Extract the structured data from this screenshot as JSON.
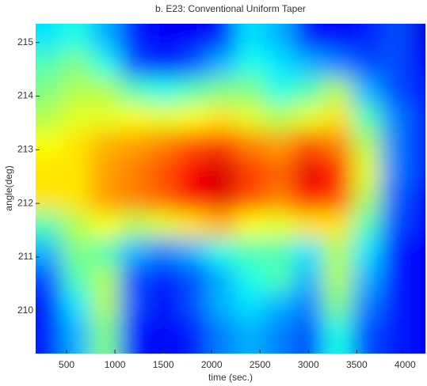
{
  "chart_data": {
    "type": "heatmap",
    "title": "b. E23: Conventional Uniform Taper",
    "x_label": "time (sec.)",
    "y_label": "angle(deg)",
    "x": [
      300,
      600,
      900,
      1200,
      1500,
      1800,
      2100,
      2400,
      2700,
      3000,
      3300,
      3600,
      3900,
      4200
    ],
    "y": [
      215.1,
      214.6,
      214.1,
      213.6,
      213.1,
      212.6,
      212.1,
      211.6,
      211.1,
      210.6,
      210.1,
      209.6
    ],
    "z": [
      [
        0.35,
        0.4,
        0.3,
        0.15,
        0.12,
        0.12,
        0.15,
        0.35,
        0.3,
        0.15,
        0.12,
        0.15,
        0.2,
        0.1
      ],
      [
        0.45,
        0.5,
        0.4,
        0.2,
        0.15,
        0.2,
        0.3,
        0.4,
        0.35,
        0.3,
        0.25,
        0.2,
        0.2,
        0.12
      ],
      [
        0.5,
        0.55,
        0.55,
        0.45,
        0.4,
        0.45,
        0.5,
        0.5,
        0.4,
        0.45,
        0.55,
        0.3,
        0.2,
        0.15
      ],
      [
        0.55,
        0.6,
        0.6,
        0.62,
        0.6,
        0.62,
        0.65,
        0.6,
        0.55,
        0.6,
        0.65,
        0.45,
        0.25,
        0.15
      ],
      [
        0.62,
        0.65,
        0.7,
        0.72,
        0.75,
        0.8,
        0.82,
        0.75,
        0.72,
        0.8,
        0.75,
        0.55,
        0.25,
        0.15
      ],
      [
        0.65,
        0.65,
        0.72,
        0.75,
        0.8,
        0.88,
        0.92,
        0.82,
        0.78,
        0.9,
        0.85,
        0.6,
        0.25,
        0.15
      ],
      [
        0.65,
        0.65,
        0.72,
        0.75,
        0.78,
        0.88,
        0.9,
        0.8,
        0.75,
        0.88,
        0.8,
        0.55,
        0.22,
        0.12
      ],
      [
        0.45,
        0.55,
        0.62,
        0.55,
        0.6,
        0.65,
        0.7,
        0.62,
        0.6,
        0.65,
        0.65,
        0.45,
        0.2,
        0.12
      ],
      [
        0.3,
        0.5,
        0.45,
        0.3,
        0.25,
        0.3,
        0.4,
        0.45,
        0.45,
        0.35,
        0.55,
        0.35,
        0.15,
        0.12
      ],
      [
        0.2,
        0.45,
        0.55,
        0.2,
        0.15,
        0.2,
        0.3,
        0.4,
        0.45,
        0.3,
        0.55,
        0.3,
        0.15,
        0.12
      ],
      [
        0.15,
        0.35,
        0.55,
        0.2,
        0.12,
        0.2,
        0.3,
        0.35,
        0.3,
        0.25,
        0.5,
        0.25,
        0.15,
        0.12
      ],
      [
        0.15,
        0.3,
        0.5,
        0.15,
        0.12,
        0.15,
        0.25,
        0.3,
        0.25,
        0.2,
        0.4,
        0.2,
        0.15,
        0.12
      ]
    ],
    "colormap": "jet",
    "clim": [
      0,
      1
    ],
    "xlim": [
      180,
      4210
    ],
    "ylim": [
      209.2,
      215.35
    ],
    "xticks": [
      500,
      1000,
      1500,
      2000,
      2500,
      3000,
      3500,
      4000
    ],
    "yticks": [
      210,
      211,
      212,
      213,
      214,
      215
    ]
  }
}
